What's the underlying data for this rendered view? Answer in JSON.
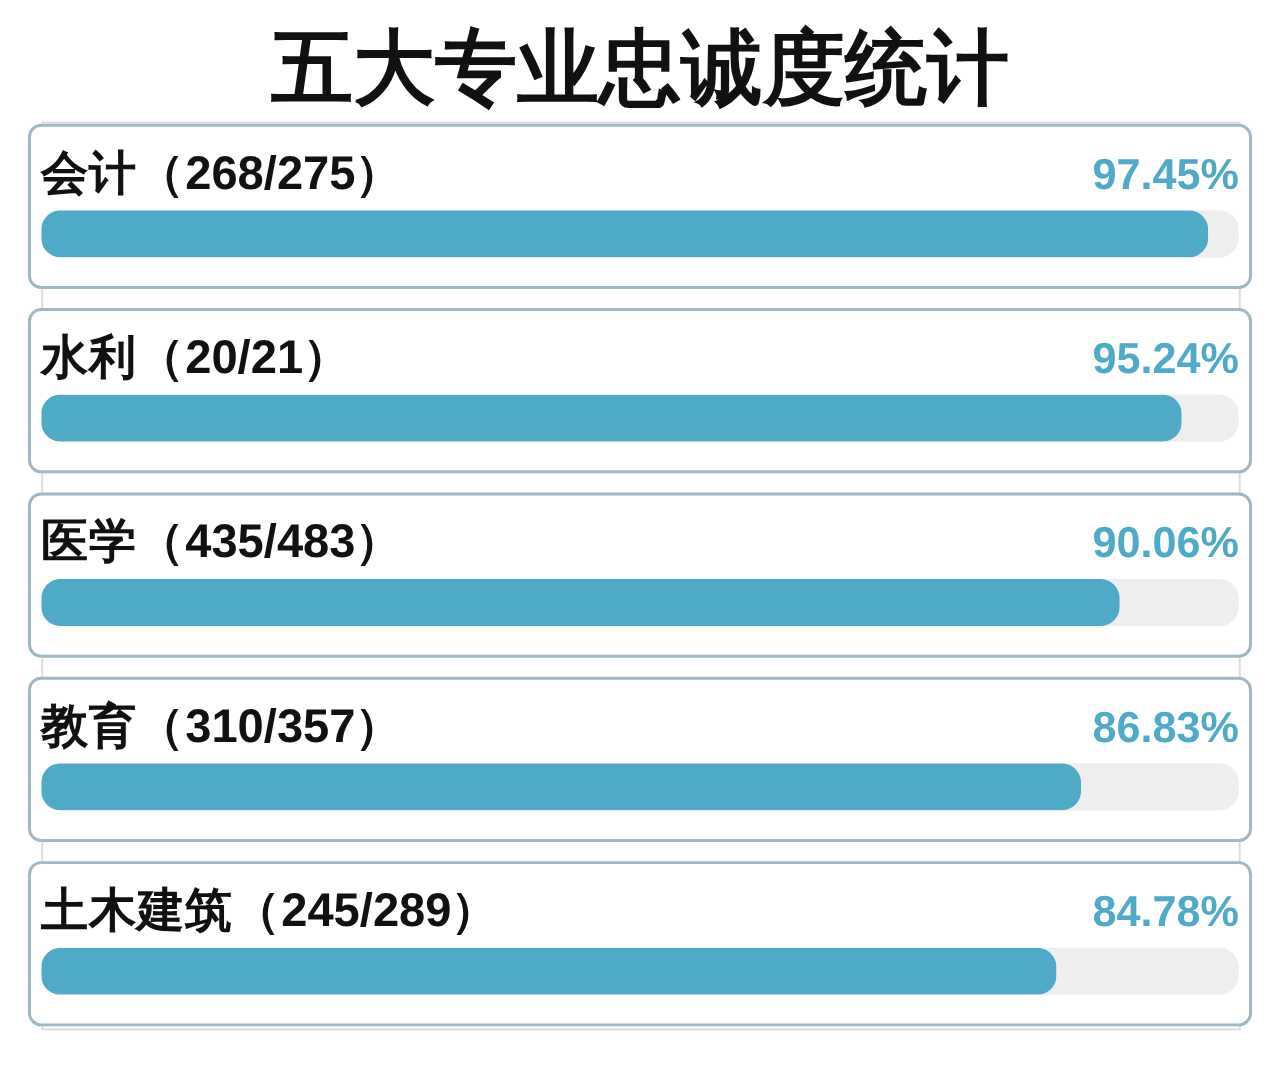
{
  "chart_data": {
    "type": "bar",
    "orientation": "horizontal",
    "title": "五大专业忠诚度统计",
    "categories": [
      "会计（268/275）",
      "水利（20/21）",
      "医学（435/483）",
      "教育（310/357）",
      "土木建筑（245/289）"
    ],
    "values": [
      97.45,
      95.24,
      90.06,
      86.83,
      84.78
    ],
    "value_labels": [
      "97.45%",
      "95.24%",
      "90.06%",
      "86.83%",
      "84.78%"
    ],
    "color": "#4eaac6",
    "xlim": [
      0,
      100
    ],
    "tick_labels": false
  }
}
